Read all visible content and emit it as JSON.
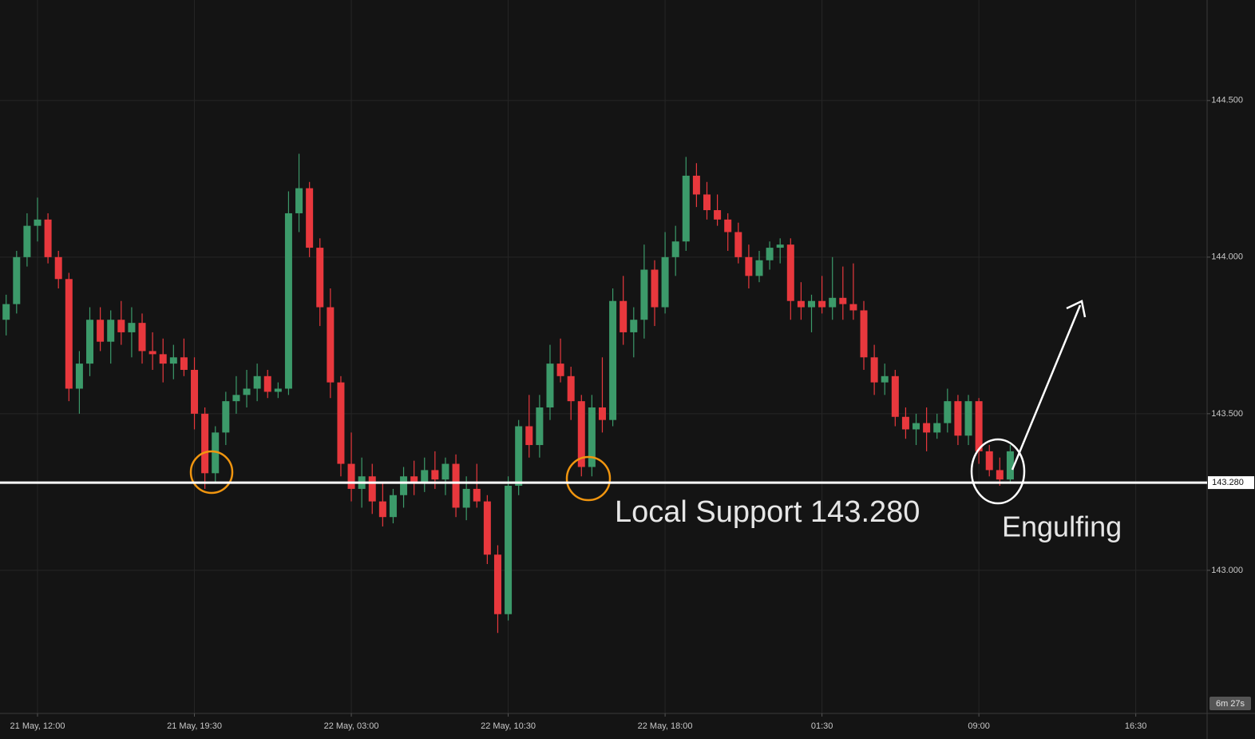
{
  "chart_data": {
    "type": "candlestick",
    "up_color": "#3c9a6a",
    "down_color": "#e8383d",
    "grid": true,
    "ylim": [
      142.543,
      144.821
    ],
    "yticks": [
      {
        "value": 143.0,
        "label": "143.000"
      },
      {
        "value": 143.5,
        "label": "143.500"
      },
      {
        "value": 144.0,
        "label": "144.000"
      },
      {
        "value": 144.5,
        "label": "144.500"
      }
    ],
    "xlim": [
      10.206,
      67.91
    ],
    "xticks": [
      {
        "value": 12,
        "label": "21 May, 12:00"
      },
      {
        "value": 19.5,
        "label": "21 May, 19:30"
      },
      {
        "value": 27,
        "label": "22 May, 03:00"
      },
      {
        "value": 34.5,
        "label": "22 May, 10:30"
      },
      {
        "value": 42,
        "label": "22 May, 18:00"
      },
      {
        "value": 49.5,
        "label": "01:30"
      },
      {
        "value": 57,
        "label": "09:00"
      },
      {
        "value": 64.5,
        "label": "16:30"
      }
    ],
    "support": {
      "value": 143.28,
      "label": "143.280"
    },
    "support_text": "Local Support 143.280",
    "pattern_text": "Engulfing",
    "timer": "6m 27s",
    "candles": [
      [
        10.5,
        143.8,
        143.88,
        143.75,
        143.85
      ],
      [
        11.0,
        143.85,
        144.02,
        143.82,
        144.0
      ],
      [
        11.5,
        144.0,
        144.14,
        143.97,
        144.1
      ],
      [
        12.0,
        144.1,
        144.19,
        144.05,
        144.12
      ],
      [
        12.5,
        144.12,
        144.14,
        143.98,
        144.0
      ],
      [
        13.0,
        144.0,
        144.02,
        143.9,
        143.93
      ],
      [
        13.5,
        143.93,
        143.95,
        143.54,
        143.58
      ],
      [
        14.0,
        143.58,
        143.7,
        143.5,
        143.66
      ],
      [
        14.5,
        143.66,
        143.84,
        143.62,
        143.8
      ],
      [
        15.0,
        143.8,
        143.84,
        143.7,
        143.73
      ],
      [
        15.5,
        143.73,
        143.83,
        143.66,
        143.8
      ],
      [
        16.0,
        143.8,
        143.86,
        143.72,
        143.76
      ],
      [
        16.5,
        143.76,
        143.84,
        143.68,
        143.79
      ],
      [
        17.0,
        143.79,
        143.82,
        143.66,
        143.7
      ],
      [
        17.5,
        143.7,
        143.76,
        143.64,
        143.69
      ],
      [
        18.0,
        143.69,
        143.74,
        143.6,
        143.66
      ],
      [
        18.5,
        143.66,
        143.72,
        143.61,
        143.68
      ],
      [
        19.0,
        143.68,
        143.74,
        143.62,
        143.64
      ],
      [
        19.5,
        143.64,
        143.68,
        143.45,
        143.5
      ],
      [
        20.0,
        143.5,
        143.52,
        143.26,
        143.31
      ],
      [
        20.5,
        143.31,
        143.46,
        143.28,
        143.44
      ],
      [
        21.0,
        143.44,
        143.57,
        143.4,
        143.54
      ],
      [
        21.5,
        143.54,
        143.62,
        143.5,
        143.56
      ],
      [
        22.0,
        143.56,
        143.64,
        143.52,
        143.58
      ],
      [
        22.5,
        143.58,
        143.66,
        143.54,
        143.62
      ],
      [
        23.0,
        143.62,
        143.64,
        143.55,
        143.57
      ],
      [
        23.5,
        143.57,
        143.6,
        143.55,
        143.58
      ],
      [
        24.0,
        143.58,
        144.21,
        143.56,
        144.14
      ],
      [
        24.5,
        144.14,
        144.33,
        144.08,
        144.22
      ],
      [
        25.0,
        144.22,
        144.24,
        144.0,
        144.03
      ],
      [
        25.5,
        144.03,
        144.06,
        143.78,
        143.84
      ],
      [
        26.0,
        143.84,
        143.9,
        143.55,
        143.6
      ],
      [
        26.5,
        143.6,
        143.62,
        143.3,
        143.34
      ],
      [
        27.0,
        143.34,
        143.44,
        143.22,
        143.26
      ],
      [
        27.5,
        143.26,
        143.36,
        143.2,
        143.3
      ],
      [
        28.0,
        143.3,
        143.34,
        143.18,
        143.22
      ],
      [
        28.5,
        143.22,
        143.28,
        143.14,
        143.17
      ],
      [
        29.0,
        143.17,
        143.26,
        143.15,
        143.24
      ],
      [
        29.5,
        143.24,
        143.33,
        143.2,
        143.3
      ],
      [
        30.0,
        143.3,
        143.35,
        143.24,
        143.28
      ],
      [
        30.5,
        143.28,
        143.36,
        143.25,
        143.32
      ],
      [
        31.0,
        143.32,
        143.38,
        143.26,
        143.29
      ],
      [
        31.5,
        143.29,
        143.36,
        143.24,
        143.34
      ],
      [
        32.0,
        143.34,
        143.37,
        143.17,
        143.2
      ],
      [
        32.5,
        143.2,
        143.3,
        143.16,
        143.26
      ],
      [
        33.0,
        143.26,
        143.34,
        143.2,
        143.22
      ],
      [
        33.5,
        143.22,
        143.24,
        143.02,
        143.05
      ],
      [
        34.0,
        143.05,
        143.08,
        142.8,
        142.86
      ],
      [
        34.5,
        142.86,
        143.3,
        142.84,
        143.27
      ],
      [
        35.0,
        143.27,
        143.48,
        143.24,
        143.46
      ],
      [
        35.5,
        143.46,
        143.56,
        143.36,
        143.4
      ],
      [
        36.0,
        143.4,
        143.56,
        143.36,
        143.52
      ],
      [
        36.5,
        143.52,
        143.72,
        143.48,
        143.66
      ],
      [
        37.0,
        143.66,
        143.74,
        143.6,
        143.62
      ],
      [
        37.5,
        143.62,
        143.65,
        143.48,
        143.54
      ],
      [
        38.0,
        143.54,
        143.56,
        143.3,
        143.33
      ],
      [
        38.5,
        143.33,
        143.56,
        143.3,
        143.52
      ],
      [
        39.0,
        143.52,
        143.68,
        143.44,
        143.48
      ],
      [
        39.5,
        143.48,
        143.9,
        143.46,
        143.86
      ],
      [
        40.0,
        143.86,
        143.94,
        143.72,
        143.76
      ],
      [
        40.5,
        143.76,
        143.84,
        143.68,
        143.8
      ],
      [
        41.0,
        143.8,
        144.04,
        143.74,
        143.96
      ],
      [
        41.5,
        143.96,
        143.99,
        143.78,
        143.84
      ],
      [
        42.0,
        143.84,
        144.08,
        143.82,
        144.0
      ],
      [
        42.5,
        144.0,
        144.1,
        143.94,
        144.05
      ],
      [
        43.0,
        144.05,
        144.32,
        144.02,
        144.26
      ],
      [
        43.5,
        144.26,
        144.3,
        144.16,
        144.2
      ],
      [
        44.0,
        144.2,
        144.24,
        144.12,
        144.15
      ],
      [
        44.5,
        144.15,
        144.2,
        144.1,
        144.12
      ],
      [
        45.0,
        144.12,
        144.14,
        144.02,
        144.08
      ],
      [
        45.5,
        144.08,
        144.11,
        143.98,
        144.0
      ],
      [
        46.0,
        144.0,
        144.04,
        143.9,
        143.94
      ],
      [
        46.5,
        143.94,
        144.02,
        143.92,
        143.99
      ],
      [
        47.0,
        143.99,
        144.05,
        143.96,
        144.03
      ],
      [
        47.5,
        144.03,
        144.06,
        143.98,
        144.04
      ],
      [
        48.0,
        144.04,
        144.06,
        143.8,
        143.86
      ],
      [
        48.5,
        143.86,
        143.92,
        143.8,
        143.84
      ],
      [
        49.0,
        143.84,
        143.88,
        143.76,
        143.86
      ],
      [
        49.5,
        143.86,
        143.94,
        143.82,
        143.84
      ],
      [
        50.0,
        143.84,
        144.0,
        143.8,
        143.87
      ],
      [
        50.5,
        143.87,
        143.97,
        143.8,
        143.85
      ],
      [
        51.0,
        143.85,
        143.98,
        143.8,
        143.83
      ],
      [
        51.5,
        143.83,
        143.86,
        143.64,
        143.68
      ],
      [
        52.0,
        143.68,
        143.72,
        143.56,
        143.6
      ],
      [
        52.5,
        143.6,
        143.66,
        143.56,
        143.62
      ],
      [
        53.0,
        143.62,
        143.64,
        143.46,
        143.49
      ],
      [
        53.5,
        143.49,
        143.52,
        143.42,
        143.45
      ],
      [
        54.0,
        143.45,
        143.5,
        143.4,
        143.47
      ],
      [
        54.5,
        143.47,
        143.52,
        143.38,
        143.44
      ],
      [
        55.0,
        143.44,
        143.5,
        143.42,
        143.47
      ],
      [
        55.5,
        143.47,
        143.58,
        143.44,
        143.54
      ],
      [
        56.0,
        143.54,
        143.56,
        143.4,
        143.43
      ],
      [
        56.5,
        143.43,
        143.56,
        143.4,
        143.54
      ],
      [
        57.0,
        143.54,
        143.55,
        143.34,
        143.38
      ],
      [
        57.5,
        143.38,
        143.4,
        143.3,
        143.32
      ],
      [
        58.0,
        143.32,
        143.36,
        143.27,
        143.29
      ],
      [
        58.5,
        143.29,
        143.4,
        143.28,
        143.38
      ]
    ]
  }
}
